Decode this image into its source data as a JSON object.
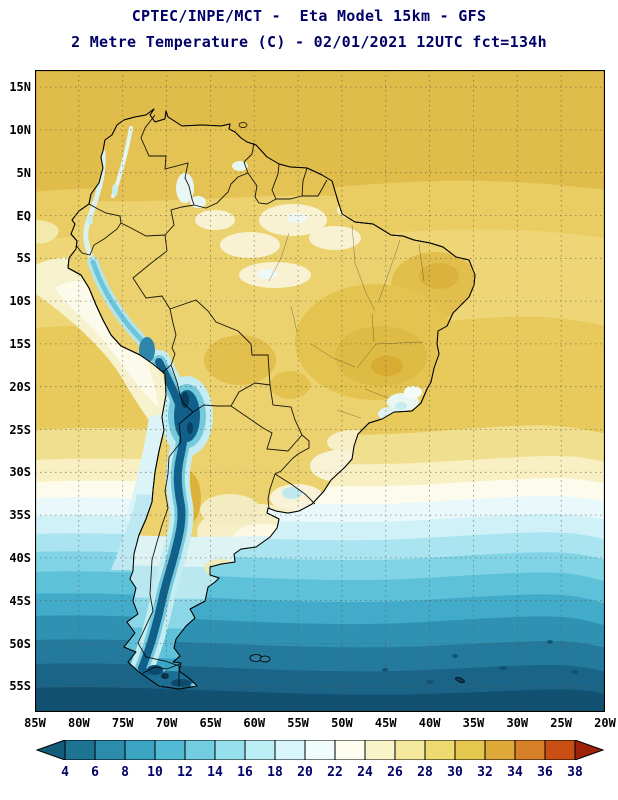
{
  "header": {
    "line1": "CPTEC/INPE/MCT -  Eta Model 15km - GFS",
    "line2": "2 Metre Temperature (C) - 02/01/2021 12UTC fct=134h"
  },
  "axes": {
    "lat": [
      "15N",
      "10N",
      "5N",
      "EQ",
      "5S",
      "10S",
      "15S",
      "20S",
      "25S",
      "30S",
      "35S",
      "40S",
      "45S",
      "50S",
      "55S"
    ],
    "lon": [
      "85W",
      "80W",
      "75W",
      "70W",
      "65W",
      "60W",
      "55W",
      "50W",
      "45W",
      "40W",
      "35W",
      "30W",
      "25W",
      "20W"
    ]
  },
  "colorbar": {
    "values": [
      "4",
      "6",
      "8",
      "10",
      "12",
      "14",
      "16",
      "18",
      "20",
      "22",
      "24",
      "26",
      "28",
      "30",
      "32",
      "34",
      "36",
      "38"
    ],
    "colors": [
      "#135c7a",
      "#1d7492",
      "#2b8cab",
      "#3aa4c2",
      "#52bad4",
      "#72cde0",
      "#96dfec",
      "#bceef5",
      "#d9f6fa",
      "#effcfc",
      "#fdfdf0",
      "#f9f3c8",
      "#f4e89c",
      "#eeda70",
      "#e5c64e",
      "#dfa93a",
      "#d67f28",
      "#c84e14",
      "#9c230a"
    ]
  },
  "colors": {
    "title": "#000066",
    "axis_text": "#000000",
    "colorbar_text": "#000066",
    "ocean_warm": "#e0bc4a",
    "ocean_cold": "#125071",
    "andes_cold": "#10608a"
  }
}
